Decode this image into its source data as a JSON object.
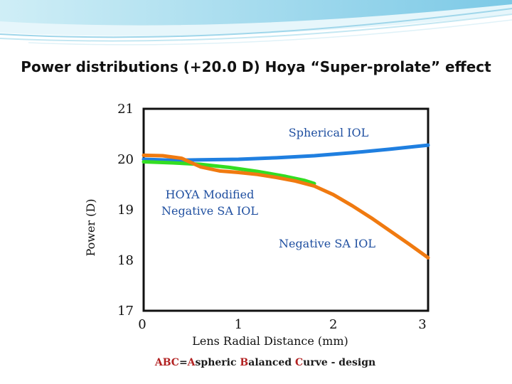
{
  "slide": {
    "title": "Power distributions (+20.0 D) Hoya “Super-prolate” effect"
  },
  "footer": {
    "parts": [
      {
        "text": "ABC",
        "highlight": true
      },
      {
        "text": "=",
        "highlight": false
      },
      {
        "text": "A",
        "highlight": true
      },
      {
        "text": "spheric ",
        "highlight": false
      },
      {
        "text": "B",
        "highlight": true
      },
      {
        "text": "alanced ",
        "highlight": false
      },
      {
        "text": "C",
        "highlight": true
      },
      {
        "text": "urve - design",
        "highlight": false
      }
    ]
  },
  "chart_data": {
    "type": "line",
    "title": "",
    "xlabel": "Lens Radial Distance (mm)",
    "ylabel": "Power (D)",
    "xlim": [
      0,
      3
    ],
    "ylim": [
      17,
      21
    ],
    "x_ticks": [
      "0",
      "1",
      "2",
      "3"
    ],
    "y_ticks": [
      "17",
      "18",
      "19",
      "20",
      "21"
    ],
    "series": [
      {
        "name": "Spherical IOL",
        "color": "#1f7fe0",
        "x": [
          0,
          0.3,
          0.6,
          1.0,
          1.4,
          1.8,
          2.2,
          2.6,
          3.0
        ],
        "y": [
          20.0,
          19.98,
          19.99,
          20.0,
          20.03,
          20.07,
          20.13,
          20.2,
          20.28
        ]
      },
      {
        "name": "HOYA Modified Negative SA IOL",
        "color": "#33dd22",
        "x": [
          0,
          0.3,
          0.6,
          0.9,
          1.2,
          1.5,
          1.7,
          1.8
        ],
        "y": [
          19.95,
          19.93,
          19.9,
          19.84,
          19.76,
          19.66,
          19.58,
          19.52
        ]
      },
      {
        "name": "Negative SA IOL",
        "color": "#f07a10",
        "x": [
          0,
          0.2,
          0.4,
          0.6,
          0.8,
          1.0,
          1.2,
          1.4,
          1.6,
          1.8,
          2.0,
          2.2,
          2.4,
          2.6,
          2.8,
          3.0
        ],
        "y": [
          20.08,
          20.07,
          20.02,
          19.85,
          19.77,
          19.74,
          19.7,
          19.64,
          19.57,
          19.47,
          19.3,
          19.08,
          18.84,
          18.58,
          18.32,
          18.05
        ]
      }
    ],
    "annotations": [
      {
        "text": "Spherical IOL",
        "color": "#1f4fa0"
      },
      {
        "text": "HOYA Modified",
        "color": "#1f4fa0"
      },
      {
        "text": "Negative SA IOL",
        "color": "#1f4fa0"
      },
      {
        "text": "Negative SA IOL",
        "color": "#1f4fa0"
      }
    ]
  }
}
